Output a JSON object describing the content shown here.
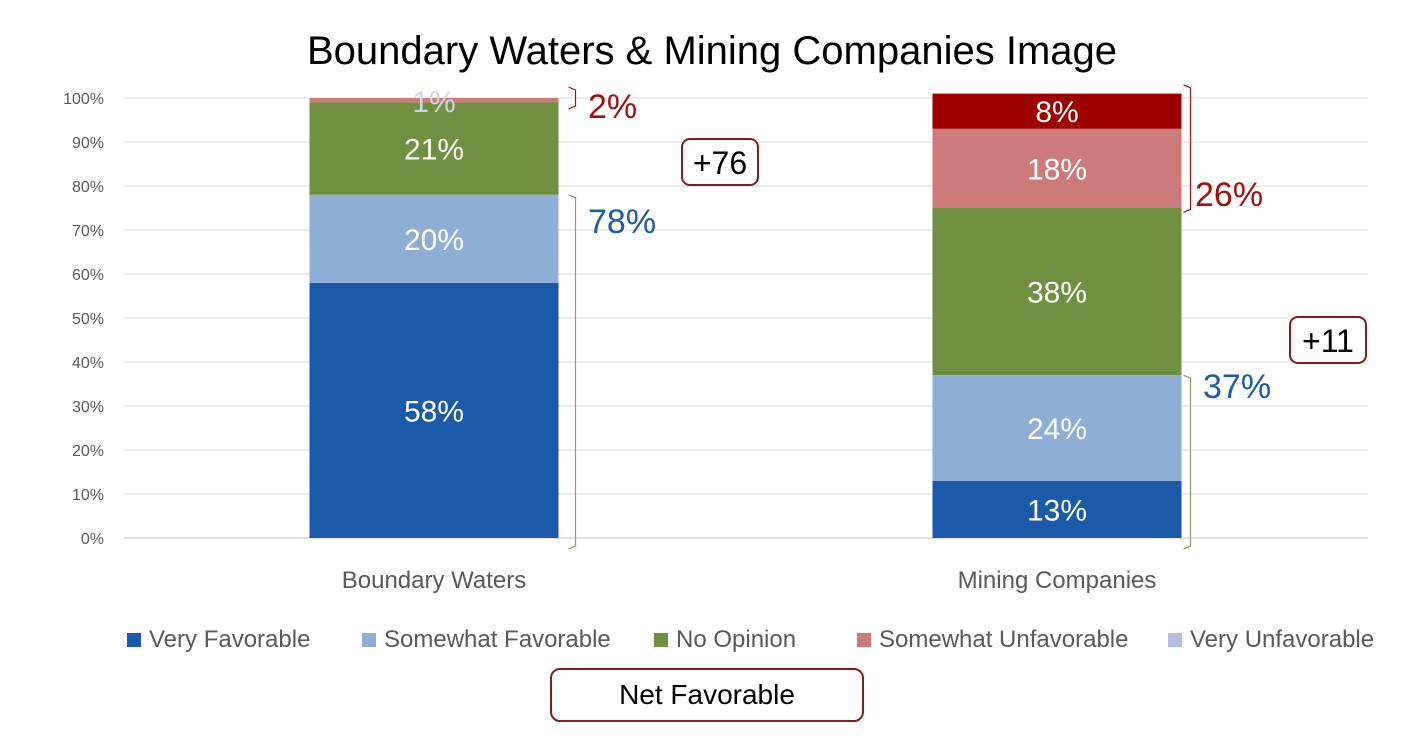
{
  "chart_data": {
    "type": "bar",
    "stacked": true,
    "title": "Boundary Waters & Mining Companies Image",
    "categories": [
      "Boundary Waters",
      "Mining Companies"
    ],
    "ylim": [
      0,
      100
    ],
    "yticks": [
      "0%",
      "10%",
      "20%",
      "30%",
      "40%",
      "50%",
      "60%",
      "70%",
      "80%",
      "90%",
      "100%"
    ],
    "grid": true,
    "legend_position": "bottom",
    "series": [
      {
        "name": "Very Favorable",
        "color": "#1b5aa8",
        "values": [
          58,
          13
        ],
        "labels": [
          "58%",
          "13%"
        ]
      },
      {
        "name": "Somewhat Favorable",
        "color": "#8eaed6",
        "values": [
          20,
          24
        ],
        "labels": [
          "20%",
          "24%"
        ]
      },
      {
        "name": "No Opinion",
        "color": "#6e9040",
        "values": [
          21,
          38
        ],
        "labels": [
          "21%",
          "38%"
        ]
      },
      {
        "name": "Somewhat Unfavorable",
        "color": "#cd7b7a",
        "values": [
          1,
          18
        ],
        "labels": [
          "1%",
          "18%"
        ]
      },
      {
        "name": "Very Unfavorable",
        "color": "#b4bee2",
        "values": [
          0,
          0
        ],
        "labels": [
          "",
          ""
        ]
      }
    ],
    "extra_segment": {
      "category_index": 1,
      "value": 8,
      "label": "8%",
      "color": "#9e0000"
    },
    "annotations": {
      "favorable_totals": [
        "78%",
        "37%"
      ],
      "unfavorable_totals": [
        "2%",
        "26%"
      ],
      "net_favorable": [
        "+76",
        "+11"
      ],
      "favorable_color": "#1f5ba8",
      "unfavorable_color": "#a50f0f"
    }
  },
  "legend_footer": "Net Favorable"
}
